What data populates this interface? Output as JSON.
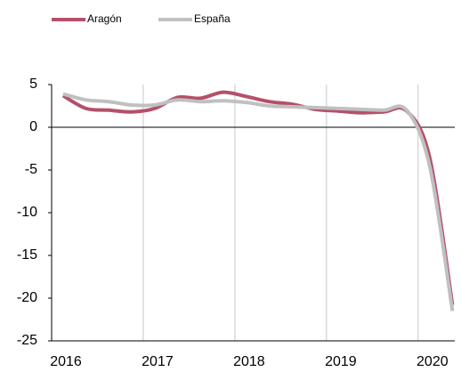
{
  "chart_data": {
    "type": "line",
    "x": [
      2016.125,
      2016.375,
      2016.625,
      2016.875,
      2017.125,
      2017.375,
      2017.625,
      2017.875,
      2018.125,
      2018.375,
      2018.625,
      2018.875,
      2019.125,
      2019.375,
      2019.625,
      2019.875,
      2020.125,
      2020.375
    ],
    "series": [
      {
        "name": "Aragón",
        "color": "#b5506a",
        "values": [
          3.7,
          2.2,
          2.0,
          1.8,
          2.2,
          3.5,
          3.4,
          4.1,
          3.6,
          3.0,
          2.7,
          2.1,
          1.9,
          1.7,
          1.8,
          1.9,
          -3.5,
          -20.8
        ]
      },
      {
        "name": "España",
        "color": "#c0c0c0",
        "values": [
          3.9,
          3.2,
          3.0,
          2.6,
          2.6,
          3.2,
          3.0,
          3.1,
          2.9,
          2.5,
          2.4,
          2.3,
          2.2,
          2.1,
          2.0,
          2.0,
          -4.5,
          -21.5
        ]
      }
    ],
    "xlim": [
      2016,
      2020.4
    ],
    "xticks": [
      2016,
      2017,
      2018,
      2019,
      2020
    ],
    "ylim": [
      -25,
      5
    ],
    "yticks": [
      5,
      0,
      -5,
      -10,
      -15,
      -20,
      -25
    ],
    "grid": "x",
    "legend": "top-left"
  }
}
